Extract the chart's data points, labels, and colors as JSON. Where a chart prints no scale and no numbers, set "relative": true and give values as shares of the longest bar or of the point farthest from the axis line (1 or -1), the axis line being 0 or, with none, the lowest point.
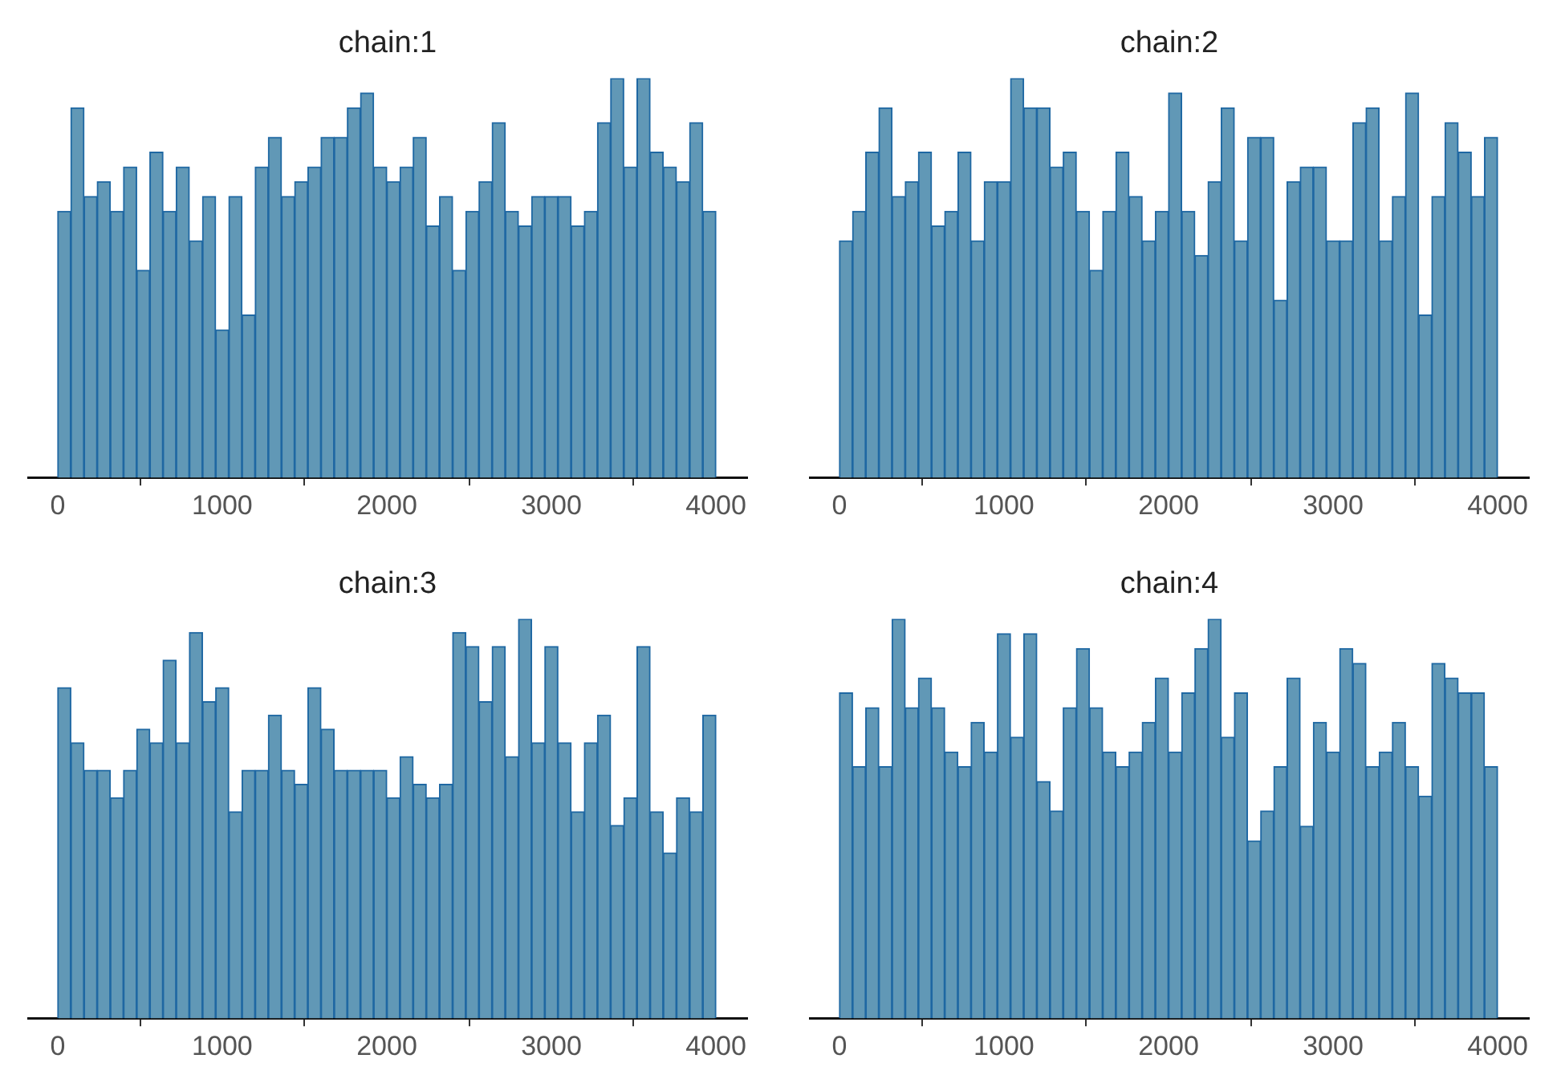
{
  "chart_data": [
    {
      "type": "bar",
      "title": "chain:1",
      "relative": true,
      "color": "#6198b6",
      "xlim": [
        -175,
        4185
      ],
      "xticks": [
        0,
        1000,
        2000,
        3000,
        4000
      ],
      "x": [
        40,
        120,
        200,
        280,
        360,
        440,
        520,
        600,
        680,
        760,
        840,
        920,
        1000,
        1080,
        1160,
        1240,
        1320,
        1400,
        1480,
        1560,
        1640,
        1720,
        1800,
        1880,
        1960,
        2040,
        2120,
        2200,
        2280,
        2360,
        2440,
        2520,
        2600,
        2680,
        2760,
        2840,
        2920,
        3000,
        3080,
        3160,
        3240,
        3320,
        3400,
        3480,
        3560,
        3640,
        3720,
        3800,
        3880,
        3960
      ],
      "values": [
        0.667,
        0.926,
        0.704,
        0.741,
        0.667,
        0.778,
        0.519,
        0.815,
        0.667,
        0.778,
        0.593,
        0.704,
        0.37,
        0.704,
        0.407,
        0.778,
        0.852,
        0.704,
        0.741,
        0.778,
        0.852,
        0.852,
        0.926,
        0.963,
        0.778,
        0.741,
        0.778,
        0.852,
        0.63,
        0.704,
        0.519,
        0.667,
        0.741,
        0.889,
        0.667,
        0.63,
        0.704,
        0.704,
        0.704,
        0.63,
        0.667,
        0.889,
        1,
        0.778,
        1,
        0.815,
        0.778,
        0.741,
        0.889,
        0.667
      ]
    },
    {
      "type": "bar",
      "title": "chain:2",
      "relative": true,
      "color": "#6198b6",
      "xlim": [
        -175,
        4185
      ],
      "xticks": [
        0,
        1000,
        2000,
        3000,
        4000
      ],
      "x": [
        40,
        120,
        200,
        280,
        360,
        440,
        520,
        600,
        680,
        760,
        840,
        920,
        1000,
        1080,
        1160,
        1240,
        1320,
        1400,
        1480,
        1560,
        1640,
        1720,
        1800,
        1880,
        1960,
        2040,
        2120,
        2200,
        2280,
        2360,
        2440,
        2520,
        2600,
        2680,
        2760,
        2840,
        2920,
        3000,
        3080,
        3160,
        3240,
        3320,
        3400,
        3480,
        3560,
        3640,
        3720,
        3800,
        3880,
        3960
      ],
      "values": [
        0.593,
        0.667,
        0.815,
        0.926,
        0.704,
        0.741,
        0.815,
        0.63,
        0.667,
        0.815,
        0.593,
        0.741,
        0.741,
        1,
        0.926,
        0.926,
        0.778,
        0.815,
        0.667,
        0.519,
        0.667,
        0.815,
        0.704,
        0.593,
        0.667,
        0.963,
        0.667,
        0.556,
        0.741,
        0.926,
        0.593,
        0.852,
        0.852,
        0.444,
        0.741,
        0.778,
        0.778,
        0.593,
        0.593,
        0.889,
        0.926,
        0.593,
        0.704,
        0.963,
        0.407,
        0.704,
        0.889,
        0.815,
        0.704,
        0.852
      ]
    },
    {
      "type": "bar",
      "title": "chain:3",
      "relative": true,
      "color": "#6198b6",
      "xlim": [
        -175,
        4185
      ],
      "xticks": [
        0,
        1000,
        2000,
        3000,
        4000
      ],
      "x": [
        40,
        120,
        200,
        280,
        360,
        440,
        520,
        600,
        680,
        760,
        840,
        920,
        1000,
        1080,
        1160,
        1240,
        1320,
        1400,
        1480,
        1560,
        1640,
        1720,
        1800,
        1880,
        1960,
        2040,
        2120,
        2200,
        2280,
        2360,
        2440,
        2520,
        2600,
        2680,
        2760,
        2840,
        2920,
        3000,
        3080,
        3160,
        3240,
        3320,
        3400,
        3480,
        3560,
        3640,
        3720,
        3800,
        3880,
        3960
      ],
      "values": [
        0.828,
        0.69,
        0.621,
        0.621,
        0.552,
        0.621,
        0.724,
        0.69,
        0.897,
        0.69,
        0.966,
        0.793,
        0.828,
        0.517,
        0.621,
        0.621,
        0.759,
        0.621,
        0.586,
        0.828,
        0.724,
        0.621,
        0.621,
        0.621,
        0.621,
        0.552,
        0.655,
        0.586,
        0.552,
        0.586,
        0.966,
        0.931,
        0.793,
        0.931,
        0.655,
        1,
        0.69,
        0.931,
        0.69,
        0.517,
        0.69,
        0.759,
        0.483,
        0.552,
        0.931,
        0.517,
        0.414,
        0.552,
        0.517,
        0.759
      ]
    },
    {
      "type": "bar",
      "title": "chain:4",
      "relative": true,
      "color": "#6198b6",
      "xlim": [
        -175,
        4185
      ],
      "xticks": [
        0,
        1000,
        2000,
        3000,
        4000
      ],
      "x": [
        40,
        120,
        200,
        280,
        360,
        440,
        520,
        600,
        680,
        760,
        840,
        920,
        1000,
        1080,
        1160,
        1240,
        1320,
        1400,
        1480,
        1560,
        1640,
        1720,
        1800,
        1880,
        1960,
        2040,
        2120,
        2200,
        2280,
        2360,
        2440,
        2520,
        2600,
        2680,
        2760,
        2840,
        2920,
        3000,
        3080,
        3160,
        3240,
        3320,
        3400,
        3480,
        3560,
        3640,
        3720,
        3800,
        3880,
        3960
      ],
      "values": [
        0.815,
        0.63,
        0.778,
        0.63,
        1,
        0.778,
        0.852,
        0.778,
        0.667,
        0.63,
        0.741,
        0.667,
        0.963,
        0.704,
        0.963,
        0.593,
        0.519,
        0.778,
        0.926,
        0.778,
        0.667,
        0.63,
        0.667,
        0.741,
        0.852,
        0.667,
        0.815,
        0.926,
        1,
        0.704,
        0.815,
        0.444,
        0.519,
        0.63,
        0.852,
        0.481,
        0.741,
        0.667,
        0.926,
        0.889,
        0.63,
        0.667,
        0.741,
        0.63,
        0.556,
        0.889,
        0.852,
        0.815,
        0.815,
        0.63
      ]
    }
  ]
}
